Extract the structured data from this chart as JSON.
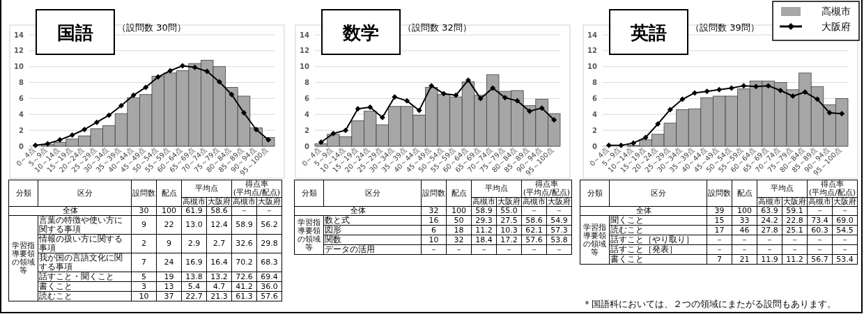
{
  "chart_data": [
    {
      "type": "bar",
      "title": "国語",
      "subtitle": "（設問数 30問）",
      "categories": [
        "0～4点",
        "5～9点",
        "10～14点",
        "15～19点",
        "20～24点",
        "25～29点",
        "30～34点",
        "35～39点",
        "40～44点",
        "45～49点",
        "50～54点",
        "55～59点",
        "60～64点",
        "65～69点",
        "70～74点",
        "75～79点",
        "80～84点",
        "85～89点",
        "90～94点",
        "95～100点"
      ],
      "ylim": [
        0,
        14
      ],
      "yticks": [
        0,
        2,
        4,
        6,
        8,
        10,
        12,
        14
      ],
      "grid": "y",
      "series": [
        {
          "type": "bar",
          "color": "#a6a6a6",
          "values": [
            0,
            0.2,
            0.5,
            0.9,
            1.3,
            2.2,
            2.6,
            4.1,
            6.1,
            6.5,
            8.8,
            9.2,
            9.5,
            10.4,
            10.8,
            10.0,
            7.4,
            6.3,
            2.3,
            1.1
          ]
        },
        {
          "type": "line",
          "color": "#000000",
          "marker": "diamond",
          "values": [
            0.1,
            0.3,
            0.8,
            1.4,
            2.1,
            3.0,
            3.9,
            5.1,
            6.4,
            7.4,
            8.7,
            9.5,
            10.1,
            9.9,
            9.4,
            8.1,
            6.5,
            4.2,
            2.1,
            0.8
          ]
        }
      ]
    },
    {
      "type": "bar",
      "title": "数学",
      "subtitle": "（設問数 32問）",
      "categories": [
        "0～4点",
        "5～9点",
        "10～14点",
        "15～19点",
        "20～24点",
        "25～29点",
        "30～34点",
        "35～39点",
        "40～44点",
        "45～49点",
        "50～54点",
        "55～59点",
        "60～64点",
        "65～69点",
        "70～74点",
        "75～79点",
        "80～84点",
        "85～89点",
        "90～94点",
        "95～100点"
      ],
      "ylim": [
        0,
        14
      ],
      "yticks": [
        0,
        2,
        4,
        6,
        8,
        10,
        12,
        14
      ],
      "grid": "y",
      "series": [
        {
          "type": "bar",
          "color": "#a6a6a6",
          "values": [
            0.3,
            1.5,
            1.2,
            3.2,
            4.4,
            2.7,
            5.0,
            5.0,
            3.9,
            7.4,
            6.5,
            6.2,
            8.1,
            6.4,
            9.0,
            6.9,
            7.0,
            5.1,
            5.9,
            4.1
          ]
        },
        {
          "type": "line",
          "color": "#000000",
          "marker": "diamond",
          "values": [
            0.5,
            1.6,
            2.0,
            4.7,
            4.9,
            3.6,
            6.2,
            5.7,
            4.5,
            7.6,
            6.6,
            6.4,
            8.3,
            6.0,
            7.3,
            6.1,
            5.7,
            4.4,
            4.8,
            3.3
          ]
        }
      ]
    },
    {
      "type": "bar",
      "title": "英語",
      "subtitle": "（設問数 39問）",
      "categories": [
        "0～4点",
        "5～9点",
        "10～14点",
        "15～19点",
        "20～24点",
        "25～29点",
        "30～34点",
        "35～39点",
        "40～44点",
        "45～49点",
        "50～54点",
        "55～59点",
        "60～64点",
        "65～69点",
        "70～74点",
        "75～79点",
        "80～84点",
        "85～89点",
        "90～94点",
        "95～100点"
      ],
      "ylim": [
        0,
        14
      ],
      "yticks": [
        0,
        2,
        4,
        6,
        8,
        10,
        12,
        14
      ],
      "grid": "y",
      "legend": "top right",
      "series": [
        {
          "type": "bar",
          "name": "高槻市",
          "color": "#a6a6a6",
          "values": [
            0,
            0,
            0.1,
            0.8,
            1.5,
            2.9,
            4.6,
            4.7,
            6.1,
            6.3,
            6.3,
            7.2,
            8.2,
            8.2,
            8.0,
            7.1,
            9.2,
            7.5,
            5.2,
            6.0
          ]
        },
        {
          "type": "line",
          "name": "大阪府",
          "color": "#000000",
          "marker": "diamond",
          "values": [
            0.1,
            0.1,
            0.4,
            1.1,
            2.8,
            4.6,
            5.9,
            6.7,
            6.9,
            7.1,
            7.3,
            7.6,
            7.5,
            7.6,
            7.0,
            6.3,
            6.8,
            5.9,
            4.2,
            4.1
          ]
        }
      ]
    },
    {
      "type": "other",
      "annotations": [
        "分類",
        "区分",
        "平均点",
        "得点率",
        "(平均点/配点)",
        "学習指導要領の領域等"
      ],
      "categories": [
        "設問数",
        "配点",
        "高槻市",
        "大阪府",
        "高槻市",
        "大阪府"
      ],
      "y_categories": [
        "全体",
        "言葉の特徴や使い方に関する事項",
        "情報の扱い方に関する事項",
        "我が国の言語文化に関する事項",
        "話すこと・聞くこと",
        "書くこと",
        "読むこと"
      ],
      "cell_labels": [
        [
          "30",
          "100",
          "61.9",
          "58.6",
          "－",
          "－"
        ],
        [
          "9",
          "22",
          "13.0",
          "12.4",
          "58.9",
          "56.2"
        ],
        [
          "2",
          "9",
          "2.9",
          "2.7",
          "32.6",
          "29.8"
        ],
        [
          "7",
          "24",
          "16.9",
          "16.4",
          "70.2",
          "68.3"
        ],
        [
          "5",
          "19",
          "13.8",
          "13.2",
          "72.6",
          "69.4"
        ],
        [
          "3",
          "13",
          "5.4",
          "4.7",
          "41.2",
          "36.0"
        ],
        [
          "10",
          "37",
          "22.7",
          "21.3",
          "61.3",
          "57.6"
        ]
      ]
    },
    {
      "type": "other",
      "annotations": [
        "分類",
        "区分",
        "平均点",
        "得点率",
        "(平均点/配点)",
        "学習指導要領の領域等"
      ],
      "categories": [
        "設問数",
        "配点",
        "高槻市",
        "大阪府",
        "高槻市",
        "大阪府"
      ],
      "y_categories": [
        "全体",
        "数と式",
        "図形",
        "関数",
        "データの活用"
      ],
      "cell_labels": [
        [
          "32",
          "100",
          "58.9",
          "55.0",
          "－",
          "－"
        ],
        [
          "16",
          "50",
          "29.3",
          "27.5",
          "58.6",
          "54.9"
        ],
        [
          "6",
          "18",
          "11.2",
          "10.3",
          "62.1",
          "57.3"
        ],
        [
          "10",
          "32",
          "18.4",
          "17.2",
          "57.6",
          "53.8"
        ],
        [
          "－",
          "－",
          "－",
          "－",
          "－",
          "－"
        ]
      ]
    },
    {
      "type": "other",
      "annotations": [
        "分類",
        "区分",
        "平均点",
        "得点率",
        "(平均点/配点)",
        "学習指導要領の領域等"
      ],
      "categories": [
        "設問数",
        "配点",
        "高槻市",
        "大阪府",
        "高槻市",
        "大阪府"
      ],
      "y_categories": [
        "全体",
        "聞くこと",
        "読むこと",
        "話すこと［やり取り］",
        "話すこと［発表］",
        "書くこと"
      ],
      "cell_labels": [
        [
          "39",
          "100",
          "63.9",
          "59.1",
          "－",
          "－"
        ],
        [
          "15",
          "33",
          "24.2",
          "22.8",
          "73.4",
          "69.0"
        ],
        [
          "17",
          "46",
          "27.8",
          "25.1",
          "60.3",
          "54.5"
        ],
        [
          "－",
          "－",
          "－",
          "－",
          "－",
          "－"
        ],
        [
          "－",
          "－",
          "－",
          "－",
          "－",
          "－"
        ],
        [
          "7",
          "21",
          "11.9",
          "11.2",
          "56.7",
          "53.4"
        ]
      ]
    },
    {
      "type": "other",
      "annotations": [
        "＊国語科においては、２つの領域にまたがる設問もあります。"
      ]
    }
  ]
}
